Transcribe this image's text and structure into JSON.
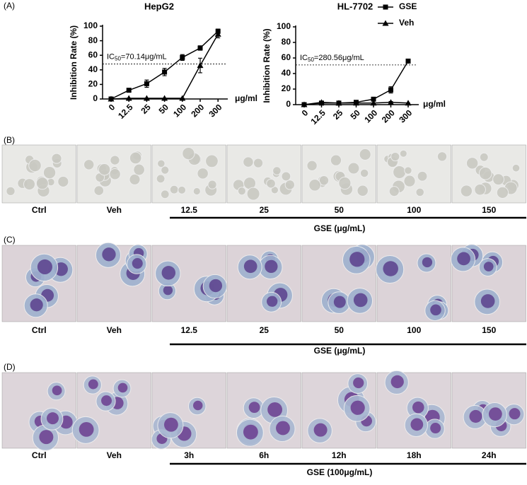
{
  "panel_a_label": "(A)",
  "chart_data": [
    {
      "type": "line",
      "title": "HepG2",
      "y_label": "Inhibition Rate (%)",
      "x_unit": "μg/ml",
      "categories": [
        "0",
        "12.5",
        "25",
        "50",
        "100",
        "200",
        "300"
      ],
      "ylim": [
        0,
        100
      ],
      "yticks": [
        0,
        20,
        40,
        60,
        80,
        100
      ],
      "series": [
        {
          "color": "#000000",
          "marker": "square",
          "values": [
            0,
            12,
            21,
            37,
            57,
            70,
            93
          ],
          "errors": [
            1,
            2,
            5,
            5,
            4,
            3,
            3
          ]
        },
        {
          "color": "#000000",
          "marker": "triangle",
          "values": [
            0,
            1,
            1,
            1,
            1,
            46,
            89
          ],
          "errors": [
            0,
            0,
            0,
            0,
            0,
            10,
            5
          ]
        }
      ],
      "threshold": {
        "value": 48,
        "prefix": "IC",
        "subscript": "50",
        "text": "=70.14μg/mL"
      }
    },
    {
      "type": "line",
      "title": "HL-7702",
      "y_label": "Inhibition Rate (%)",
      "x_unit": "μg/ml",
      "categories": [
        "0",
        "12.5",
        "25",
        "50",
        "100",
        "200",
        "300"
      ],
      "ylim": [
        0,
        100
      ],
      "yticks": [
        0,
        20,
        40,
        60,
        80,
        100
      ],
      "series": [
        {
          "name": "GSE",
          "color": "#000000",
          "marker": "square",
          "values": [
            0,
            2,
            2,
            3,
            7,
            19,
            56
          ],
          "errors": [
            1,
            1,
            1,
            1,
            2,
            4,
            2
          ]
        },
        {
          "name": "Veh",
          "color": "#000000",
          "marker": "triangle",
          "values": [
            0,
            3,
            2,
            2,
            2,
            3,
            2
          ],
          "errors": [
            0,
            0,
            0,
            0,
            0,
            1,
            0
          ]
        }
      ],
      "threshold": {
        "value": 51,
        "prefix": "IC",
        "subscript": "50",
        "text": "=280.56μg/mL"
      },
      "legend": "top-right"
    }
  ],
  "panels": [
    {
      "label": "(B)",
      "images": [
        "Ctrl",
        "Veh",
        "12.5",
        "25",
        "50",
        "100",
        "150"
      ],
      "group": "GSE (μg/mL)"
    },
    {
      "label": "(C)",
      "images": [
        "Ctrl",
        "Veh",
        "12.5",
        "25",
        "50",
        "100",
        "150"
      ],
      "group": "GSE (μg/mL)"
    },
    {
      "label": "(D)",
      "images": [
        "Ctrl",
        "Veh",
        "3h",
        "6h",
        "12h",
        "18h",
        "24h"
      ],
      "group": "GSE (100μg/mL)"
    }
  ]
}
